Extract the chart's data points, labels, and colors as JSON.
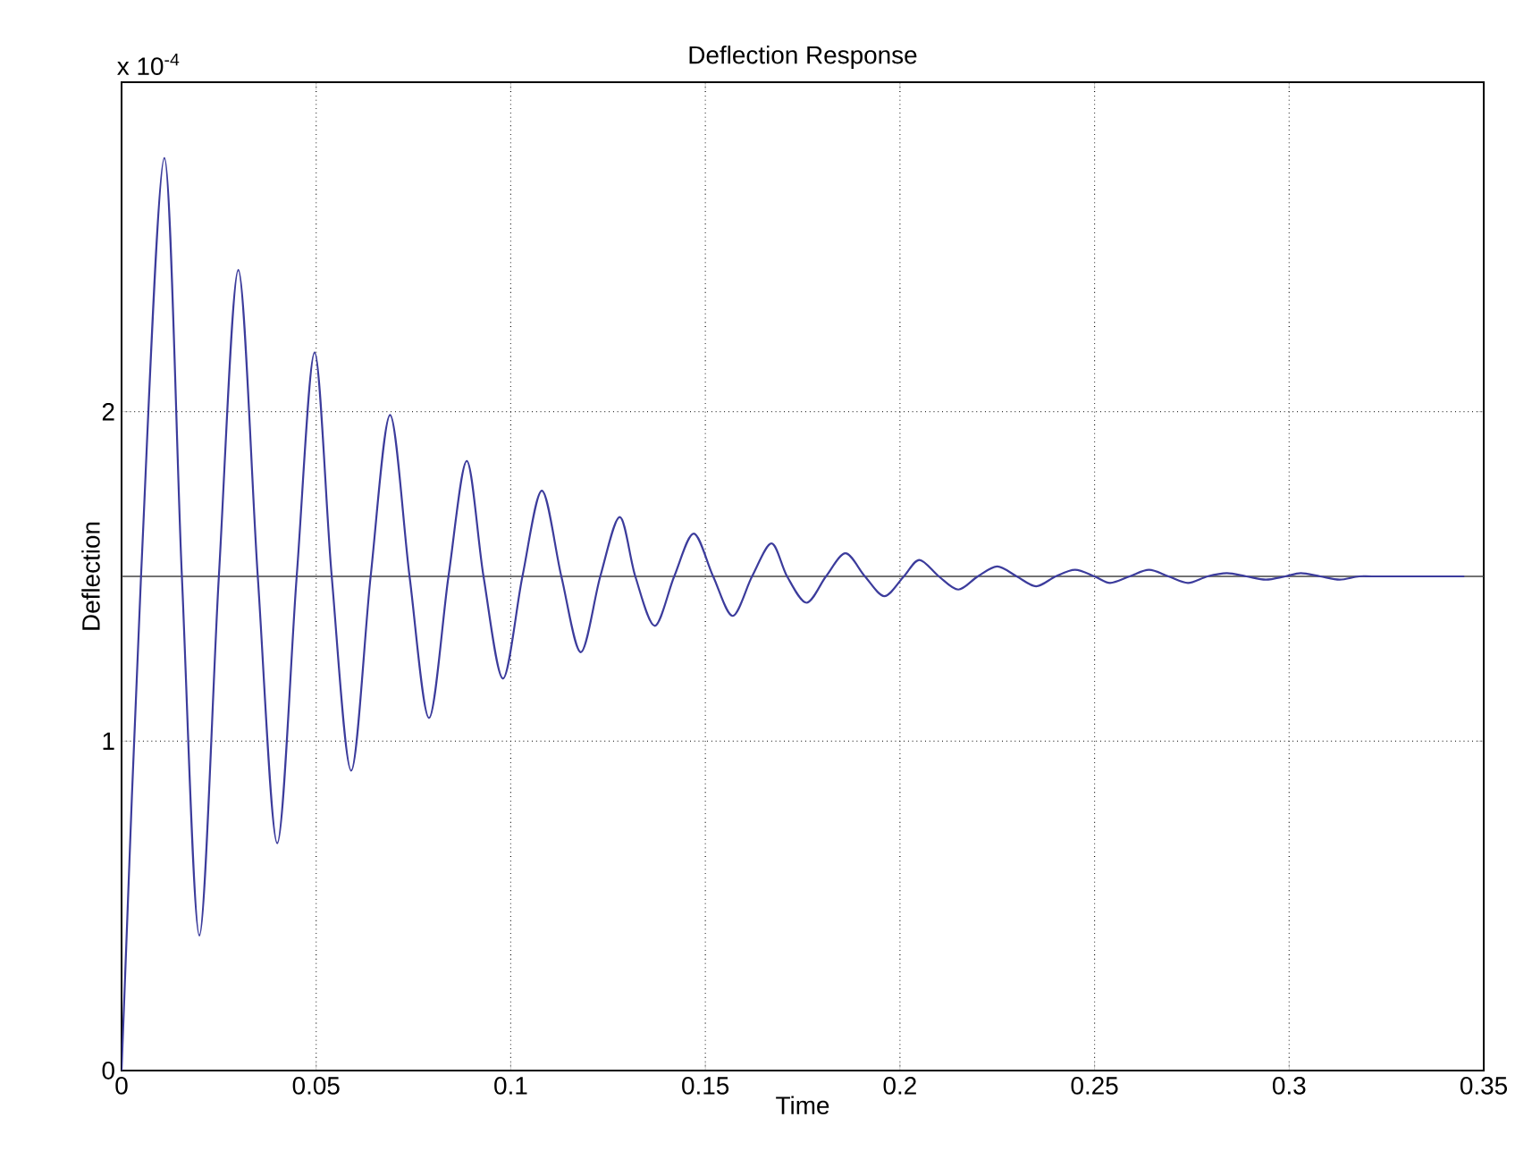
{
  "chart_data": {
    "type": "line",
    "title": "Deflection Response",
    "xlabel": "Time",
    "ylabel": "Deflection",
    "annotations": [
      "x 10$^{-4}$"
    ],
    "xlim": [
      0,
      0.35
    ],
    "ylim": [
      0,
      3
    ],
    "xticks": [
      0,
      0.05,
      0.1,
      0.15,
      0.2,
      0.25,
      0.3,
      0.35
    ],
    "yticks": [
      0,
      1,
      2
    ],
    "grid": true,
    "line_style": "solid",
    "marker": "none",
    "ref_lines": [
      {
        "axis": "y",
        "value": 1.5,
        "color": "#444444"
      }
    ],
    "series": [
      {
        "color": "#3c3c9c",
        "x": [
          0,
          0.005,
          0.011,
          0.0155,
          0.02,
          0.025,
          0.03,
          0.035,
          0.04,
          0.045,
          0.0496,
          0.054,
          0.059,
          0.064,
          0.069,
          0.074,
          0.079,
          0.084,
          0.0887,
          0.093,
          0.098,
          0.103,
          0.108,
          0.113,
          0.118,
          0.123,
          0.128,
          0.132,
          0.137,
          0.142,
          0.147,
          0.152,
          0.157,
          0.162,
          0.167,
          0.171,
          0.176,
          0.181,
          0.186,
          0.191,
          0.196,
          0.201,
          0.205,
          0.21,
          0.215,
          0.22,
          0.225,
          0.23,
          0.235,
          0.24,
          0.245,
          0.25,
          0.254,
          0.259,
          0.264,
          0.269,
          0.274,
          0.279,
          0.284,
          0.289,
          0.294,
          0.299,
          0.303,
          0.308,
          0.313,
          0.318,
          0.323,
          0.345
        ],
        "values": [
          0,
          1.5,
          2.77,
          1.5,
          0.41,
          1.5,
          2.43,
          1.5,
          0.69,
          1.5,
          2.18,
          1.5,
          0.91,
          1.5,
          1.99,
          1.5,
          1.07,
          1.5,
          1.85,
          1.5,
          1.19,
          1.5,
          1.76,
          1.5,
          1.27,
          1.5,
          1.68,
          1.5,
          1.35,
          1.5,
          1.63,
          1.5,
          1.38,
          1.5,
          1.6,
          1.5,
          1.42,
          1.5,
          1.57,
          1.5,
          1.44,
          1.5,
          1.55,
          1.5,
          1.46,
          1.5,
          1.53,
          1.5,
          1.47,
          1.5,
          1.52,
          1.5,
          1.48,
          1.5,
          1.52,
          1.5,
          1.48,
          1.5,
          1.51,
          1.5,
          1.49,
          1.5,
          1.51,
          1.5,
          1.49,
          1.5,
          1.5,
          1.5
        ]
      }
    ]
  }
}
